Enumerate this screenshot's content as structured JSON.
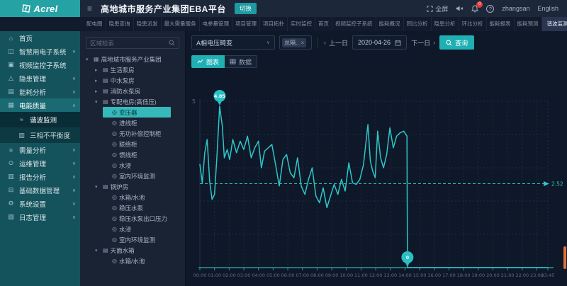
{
  "colors": {
    "accent": "#2fc6c8",
    "logo_bg": "#25a3a4",
    "sidebar_bg": "#14525c",
    "sidebar_submenu_bg": "#0d3943",
    "sidebar_active_bg": "#092d36",
    "tree_selected_bg": "#36b9ba",
    "header_bg": "#1c2739",
    "tabbar_bg": "#121b2b",
    "main_bg": "#0e1828",
    "badge_red": "#e23b3b",
    "scrollbar_orange": "#e0713a"
  },
  "header": {
    "logo_text": "Acrel",
    "title": "高地城市服务产业集团EBA平台",
    "switch_label": "切换",
    "fullscreen_label": "全屏",
    "bell_badge": "0",
    "username": "zhangsan",
    "language_label": "English"
  },
  "tabbar": {
    "tabs": [
      "配电图",
      "隐患查询",
      "隐患派发",
      "最大需量服务",
      "电参量管理",
      "项目管理",
      "项目拓扑",
      "实时监控",
      "首页",
      "视频监控子系统",
      "能耗概况",
      "同比分析",
      "隐患分析",
      "环比分析",
      "能耗报表",
      "能耗预测"
    ],
    "active_tab": "谐波监测",
    "close_label": "×"
  },
  "sidebar": {
    "items": [
      {
        "label": "首页",
        "icon": "home-icon",
        "expandable": false
      },
      {
        "label": "智慧用电子系统",
        "icon": "monitor-icon",
        "expandable": true
      },
      {
        "label": "视频监控子系统",
        "icon": "video-icon",
        "expandable": false
      },
      {
        "label": "隐患管理",
        "icon": "warning-icon",
        "expandable": true
      },
      {
        "label": "能耗分析",
        "icon": "chart-icon",
        "expandable": true
      },
      {
        "label": "电能质量",
        "icon": "power-icon",
        "expandable": true,
        "expanded": true,
        "children": [
          {
            "label": "谐波监测",
            "icon": "line-chart-icon",
            "active": true
          },
          {
            "label": "三相不平衡度",
            "icon": "bar-chart-icon",
            "active": false
          }
        ]
      },
      {
        "label": "需量分析",
        "icon": "demand-icon",
        "expandable": true
      },
      {
        "label": "运维管理",
        "icon": "ops-icon",
        "expandable": true
      },
      {
        "label": "报告分析",
        "icon": "report-icon",
        "expandable": true
      },
      {
        "label": "基础数据管理",
        "icon": "database-icon",
        "expandable": true
      },
      {
        "label": "系统设置",
        "icon": "gear-icon",
        "expandable": true
      },
      {
        "label": "日志管理",
        "icon": "log-icon",
        "expandable": true
      }
    ]
  },
  "tree": {
    "search_placeholder": "区域检索",
    "nodes": [
      {
        "label": "高地城市服务产业集团",
        "level": 0,
        "caret": "expanded",
        "icon": "org-icon",
        "selected": false
      },
      {
        "label": "生活泵房",
        "level": 1,
        "caret": "collapsed",
        "icon": "building-icon",
        "selected": false
      },
      {
        "label": "中水泵房",
        "level": 1,
        "caret": "collapsed",
        "icon": "building-icon",
        "selected": false
      },
      {
        "label": "消防水泵房",
        "level": 1,
        "caret": "collapsed",
        "icon": "building-icon",
        "selected": false
      },
      {
        "label": "专配电房(高低压)",
        "level": 1,
        "caret": "expanded",
        "icon": "building-icon",
        "selected": false
      },
      {
        "label": "变压器",
        "level": 2,
        "caret": "none",
        "icon": "meter-icon",
        "selected": true
      },
      {
        "label": "进线柜",
        "level": 2,
        "caret": "none",
        "icon": "meter-icon",
        "selected": false
      },
      {
        "label": "无功补偿控制柜",
        "level": 2,
        "caret": "none",
        "icon": "meter-icon",
        "selected": false
      },
      {
        "label": "联络柜",
        "level": 2,
        "caret": "none",
        "icon": "meter-icon",
        "selected": false
      },
      {
        "label": "馈线柜",
        "level": 2,
        "caret": "none",
        "icon": "meter-icon",
        "selected": false
      },
      {
        "label": "水浸",
        "level": 2,
        "caret": "none",
        "icon": "meter-icon",
        "selected": false
      },
      {
        "label": "室内环境监测",
        "level": 2,
        "caret": "none",
        "icon": "meter-icon",
        "selected": false
      },
      {
        "label": "锅炉房",
        "level": 1,
        "caret": "expanded",
        "icon": "building-icon",
        "selected": false
      },
      {
        "label": "水箱/水池",
        "level": 2,
        "caret": "none",
        "icon": "meter-icon",
        "selected": false
      },
      {
        "label": "稳压水泵",
        "level": 2,
        "caret": "none",
        "icon": "meter-icon",
        "selected": false
      },
      {
        "label": "稳压水泵出口压力",
        "level": 2,
        "caret": "none",
        "icon": "meter-icon",
        "selected": false
      },
      {
        "label": "水浸",
        "level": 2,
        "caret": "none",
        "icon": "meter-icon",
        "selected": false
      },
      {
        "label": "室内环境监测",
        "level": 2,
        "caret": "none",
        "icon": "meter-icon",
        "selected": false
      },
      {
        "label": "天面水箱",
        "level": 1,
        "caret": "expanded",
        "icon": "building-icon",
        "selected": false
      },
      {
        "label": "水箱/水池",
        "level": 2,
        "caret": "none",
        "icon": "meter-icon",
        "selected": false
      }
    ]
  },
  "toolbar": {
    "indicator_select": "A相电压畸变",
    "circuit_tag": "总隔..",
    "tag_close": "×",
    "prev_label": "上一日",
    "date_value": "2020-04-26",
    "next_label": "下一日",
    "query_label": "查询"
  },
  "view_toggle": {
    "chart_label": "图表",
    "data_label": "数据"
  },
  "chart_data": {
    "type": "line",
    "title": "",
    "xlabel": "",
    "ylabel": "",
    "ylim": [
      0,
      6
    ],
    "grid": true,
    "legend_position": "none",
    "x_labels": [
      "00:00",
      "01:00",
      "02:00",
      "03:00",
      "04:00",
      "05:00",
      "06:00",
      "07:00",
      "08:00",
      "09:00",
      "10:00",
      "11:00",
      "12:00",
      "13:00",
      "14:00",
      "15:00",
      "16:00",
      "17:00",
      "18:00",
      "19:00",
      "20:00",
      "21:00",
      "22:00",
      "23:00",
      "23:45"
    ],
    "y_tick_labels": [
      "5"
    ],
    "threshold": {
      "value": 2.52,
      "label": "2.52"
    },
    "series": [
      {
        "name": "A相电压畸变",
        "color": "#2fc6c8",
        "points": [
          [
            0,
            3.1
          ],
          [
            10,
            2.55
          ],
          [
            20,
            3.45
          ],
          [
            30,
            3.85
          ],
          [
            40,
            2.6
          ],
          [
            50,
            2.05
          ],
          [
            60,
            2.2
          ],
          [
            70,
            3.35
          ],
          [
            81,
            4.85
          ],
          [
            92,
            4.25
          ],
          [
            100,
            3.3
          ],
          [
            112,
            3.55
          ],
          [
            122,
            3.25
          ],
          [
            135,
            3.85
          ],
          [
            150,
            3.45
          ],
          [
            165,
            3.8
          ],
          [
            180,
            3.55
          ],
          [
            195,
            3.95
          ],
          [
            210,
            3.3
          ],
          [
            225,
            3.6
          ],
          [
            240,
            3.8
          ],
          [
            252,
            3.0
          ],
          [
            265,
            3.5
          ],
          [
            280,
            3.6
          ],
          [
            295,
            3.7
          ],
          [
            310,
            3.1
          ],
          [
            325,
            2.45
          ],
          [
            340,
            3.25
          ],
          [
            355,
            3.4
          ],
          [
            370,
            2.85
          ],
          [
            385,
            2.7
          ],
          [
            400,
            3.3
          ],
          [
            415,
            2.45
          ],
          [
            430,
            2.2
          ],
          [
            445,
            2.65
          ],
          [
            460,
            3.0
          ],
          [
            475,
            2.15
          ],
          [
            490,
            1.95
          ],
          [
            505,
            2.4
          ],
          [
            520,
            1.8
          ],
          [
            535,
            2.15
          ],
          [
            550,
            2.5
          ],
          [
            565,
            2.2
          ],
          [
            580,
            2.65
          ],
          [
            595,
            2.3
          ],
          [
            610,
            3.15
          ],
          [
            625,
            2.55
          ],
          [
            640,
            2.5
          ],
          [
            655,
            2.65
          ],
          [
            670,
            3.1
          ],
          [
            688,
            4.3
          ],
          [
            698,
            3.2
          ],
          [
            708,
            2.9
          ],
          [
            718,
            2.7
          ],
          [
            728,
            4.1
          ],
          [
            740,
            3.3
          ],
          [
            752,
            3.0
          ],
          [
            765,
            3.4
          ],
          [
            778,
            4.2
          ],
          [
            792,
            3.6
          ],
          [
            806,
            3.95
          ],
          [
            820,
            4.05
          ],
          [
            835,
            4.1
          ],
          [
            848,
            3.95
          ],
          [
            850,
            0
          ],
          [
            1425,
            0
          ]
        ]
      }
    ],
    "markers": [
      {
        "time_minutes": 81,
        "value": 4.85,
        "label": "4.85"
      },
      {
        "time_minutes": 850,
        "value": 0,
        "label": "0"
      }
    ]
  }
}
